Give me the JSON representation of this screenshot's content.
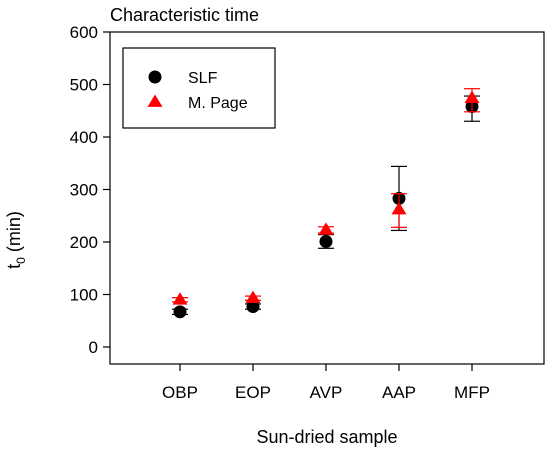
{
  "chart_data": {
    "type": "scatter",
    "title": "Characteristic time",
    "xlabel": "Sun-dried sample",
    "ylabel_main": "t",
    "ylabel_sub": "0",
    "ylabel_unit": " (min)",
    "ylim": [
      0,
      600
    ],
    "yticks": [
      0,
      100,
      200,
      300,
      400,
      500,
      600
    ],
    "categories": [
      "OBP",
      "EOP",
      "AVP",
      "AAP",
      "MFP"
    ],
    "legend_position": "top-left",
    "grid": false,
    "series": [
      {
        "name": "SLF",
        "marker": "circle",
        "color": "#000000",
        "values": [
          67,
          77,
          201,
          283,
          458
        ],
        "error_low": [
          62,
          72,
          188,
          222,
          430
        ],
        "error_high": [
          72,
          82,
          214,
          344,
          478
        ]
      },
      {
        "name": "M. Page",
        "marker": "triangle",
        "color": "#ff0000",
        "values": [
          90,
          93,
          223,
          262,
          474
        ],
        "error_low": [
          86,
          89,
          217,
          228,
          448
        ],
        "error_high": [
          94,
          97,
          229,
          292,
          492
        ]
      }
    ]
  }
}
